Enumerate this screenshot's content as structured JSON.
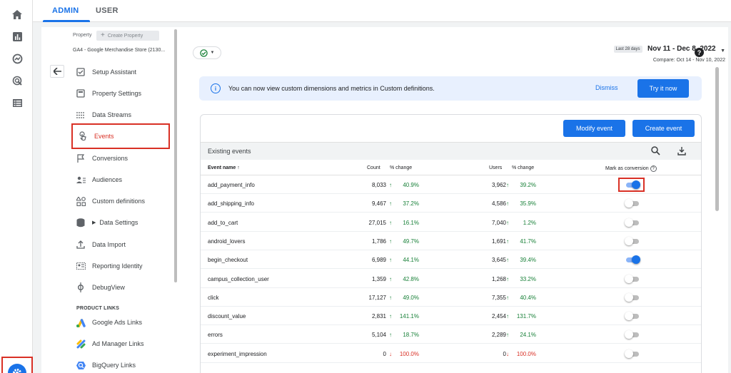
{
  "rail": {
    "icons": [
      "home-icon",
      "reports-icon",
      "explore-icon",
      "advertising-icon",
      "configure-icon"
    ],
    "settings_icon": "gear-icon"
  },
  "tabs": [
    {
      "label": "ADMIN",
      "active": true
    },
    {
      "label": "USER",
      "active": false
    }
  ],
  "property": {
    "label": "Property",
    "create_label": "Create Property",
    "name": "GA4 - Google Merchandise Store (2130..."
  },
  "nav": {
    "items": [
      {
        "label": "Setup Assistant",
        "icon": "checklist-icon"
      },
      {
        "label": "Property Settings",
        "icon": "settings-page-icon"
      },
      {
        "label": "Data Streams",
        "icon": "streams-icon"
      },
      {
        "label": "Events",
        "icon": "touch-icon",
        "active": true
      },
      {
        "label": "Conversions",
        "icon": "flag-icon"
      },
      {
        "label": "Audiences",
        "icon": "audiences-icon"
      },
      {
        "label": "Custom definitions",
        "icon": "shapes-icon"
      },
      {
        "label": "Data Settings",
        "icon": "database-icon"
      },
      {
        "label": "Data Import",
        "icon": "upload-icon"
      },
      {
        "label": "Reporting Identity",
        "icon": "identity-icon"
      },
      {
        "label": "DebugView",
        "icon": "debug-icon"
      }
    ],
    "section_label": "PRODUCT LINKS",
    "links": [
      {
        "label": "Google Ads Links",
        "icon": "google-ads-icon"
      },
      {
        "label": "Ad Manager Links",
        "icon": "ad-manager-icon"
      },
      {
        "label": "BigQuery Links",
        "icon": "bigquery-icon"
      }
    ]
  },
  "date": {
    "badge": "Last 28 days",
    "range": "Nov 11 - Dec 8, 2022",
    "compare": "Compare: Oct 14 - Nov 10, 2022"
  },
  "banner": {
    "text": "You can now view custom dimensions and metrics in Custom definitions.",
    "dismiss": "Dismiss",
    "action": "Try it now"
  },
  "buttons": {
    "modify": "Modify event",
    "create": "Create event"
  },
  "table": {
    "title": "Existing events",
    "headers": {
      "name": "Event name",
      "count": "Count",
      "count_change": "% change",
      "users": "Users",
      "users_change": "% change",
      "conversion": "Mark as conversion"
    },
    "rows": [
      {
        "name": "add_payment_info",
        "count": "8,033",
        "count_change": "40.9%",
        "count_dir": "up",
        "users": "3,962",
        "users_change": "39.2%",
        "users_dir": "up",
        "conversion": true
      },
      {
        "name": "add_shipping_info",
        "count": "9,467",
        "count_change": "37.2%",
        "count_dir": "up",
        "users": "4,586",
        "users_change": "35.9%",
        "users_dir": "up",
        "conversion": false
      },
      {
        "name": "add_to_cart",
        "count": "27,015",
        "count_change": "16.1%",
        "count_dir": "up",
        "users": "7,040",
        "users_change": "1.2%",
        "users_dir": "up",
        "conversion": false
      },
      {
        "name": "android_lovers",
        "count": "1,786",
        "count_change": "49.7%",
        "count_dir": "up",
        "users": "1,691",
        "users_change": "41.7%",
        "users_dir": "up",
        "conversion": false
      },
      {
        "name": "begin_checkout",
        "count": "6,989",
        "count_change": "44.1%",
        "count_dir": "up",
        "users": "3,645",
        "users_change": "39.4%",
        "users_dir": "up",
        "conversion": true
      },
      {
        "name": "campus_collection_user",
        "count": "1,359",
        "count_change": "42.8%",
        "count_dir": "up",
        "users": "1,268",
        "users_change": "33.2%",
        "users_dir": "up",
        "conversion": false
      },
      {
        "name": "click",
        "count": "17,127",
        "count_change": "49.0%",
        "count_dir": "up",
        "users": "7,355",
        "users_change": "40.4%",
        "users_dir": "up",
        "conversion": false
      },
      {
        "name": "discount_value",
        "count": "2,831",
        "count_change": "141.1%",
        "count_dir": "up",
        "users": "2,454",
        "users_change": "131.7%",
        "users_dir": "up",
        "conversion": false
      },
      {
        "name": "errors",
        "count": "5,104",
        "count_change": "18.7%",
        "count_dir": "up",
        "users": "2,289",
        "users_change": "24.1%",
        "users_dir": "up",
        "conversion": false
      },
      {
        "name": "experiment_impression",
        "count": "0",
        "count_change": "100.0%",
        "count_dir": "down",
        "users": "0",
        "users_change": "100.0%",
        "users_dir": "down",
        "conversion": false
      }
    ]
  },
  "colors": {
    "accent": "#1a73e8",
    "highlight": "#d93025",
    "positive": "#188038",
    "negative": "#d93025"
  }
}
